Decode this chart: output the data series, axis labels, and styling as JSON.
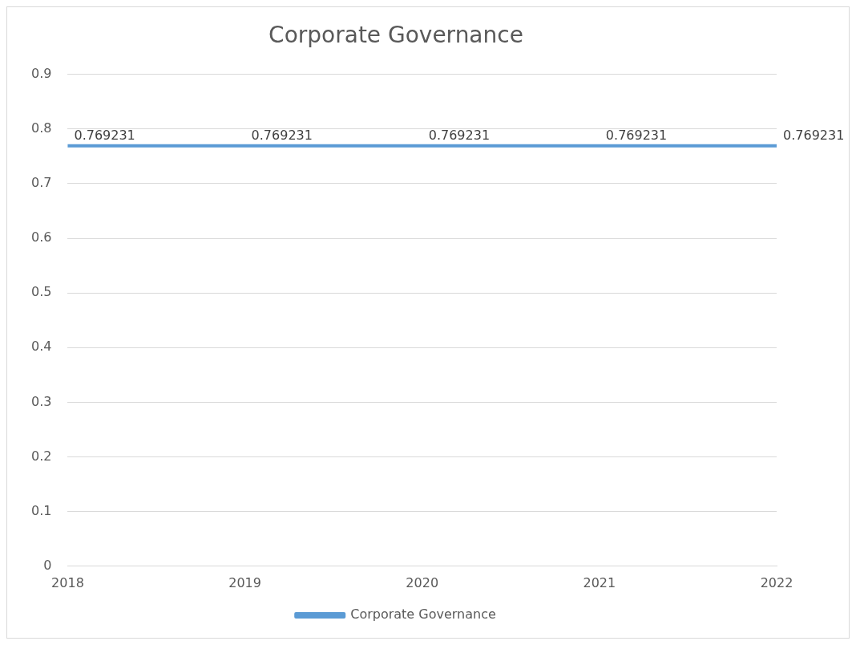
{
  "chart_data": {
    "type": "line",
    "title": "Corporate Governance",
    "categories": [
      "2018",
      "2019",
      "2020",
      "2021",
      "2022"
    ],
    "series": [
      {
        "name": "Corporate Governance",
        "color": "#5b9bd5",
        "values": [
          0.769231,
          0.769231,
          0.769231,
          0.769231,
          0.769231
        ]
      }
    ],
    "ylim": [
      0,
      0.9
    ],
    "yticks": [
      0,
      0.1,
      0.2,
      0.3,
      0.4,
      0.5,
      0.6,
      0.7,
      0.8,
      0.9
    ],
    "grid": "y",
    "legend": "bottom",
    "marker": "none",
    "line_style": "solid",
    "data_labels": true
  }
}
